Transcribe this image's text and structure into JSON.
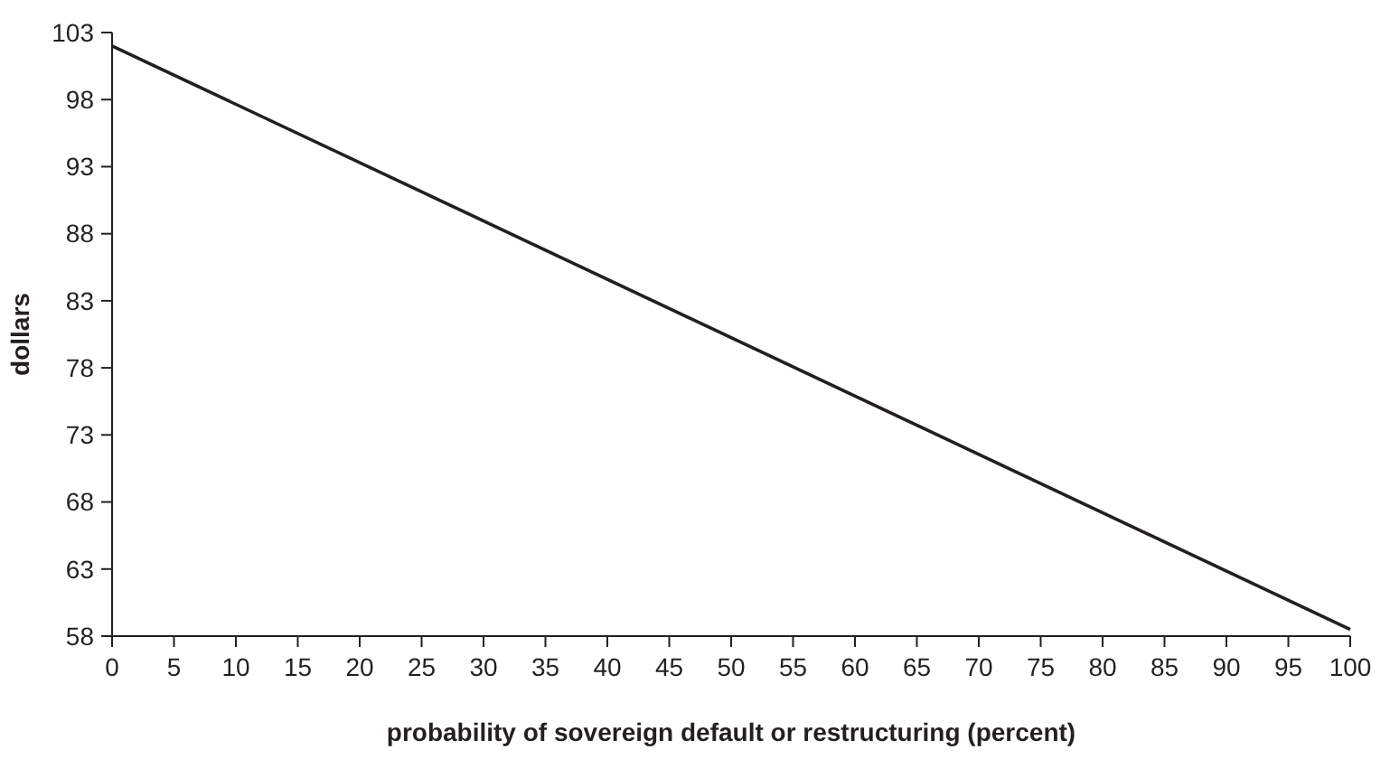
{
  "chart_data": {
    "type": "line",
    "xlabel": "probability of sovereign default or restructuring (percent)",
    "ylabel": "dollars",
    "x": [
      0,
      100
    ],
    "series": [
      {
        "color": "#231f20",
        "values": [
          102,
          58.5
        ]
      }
    ],
    "xlim": [
      0,
      100
    ],
    "xticks": [
      0,
      5,
      10,
      15,
      20,
      25,
      30,
      35,
      40,
      45,
      50,
      55,
      60,
      65,
      70,
      75,
      80,
      85,
      90,
      95,
      100
    ],
    "ylim": [
      58,
      103
    ],
    "yticks": [
      58,
      63,
      68,
      73,
      78,
      83,
      88,
      93,
      98,
      103
    ],
    "grid": false,
    "marker": "none",
    "line_style": "solid"
  }
}
